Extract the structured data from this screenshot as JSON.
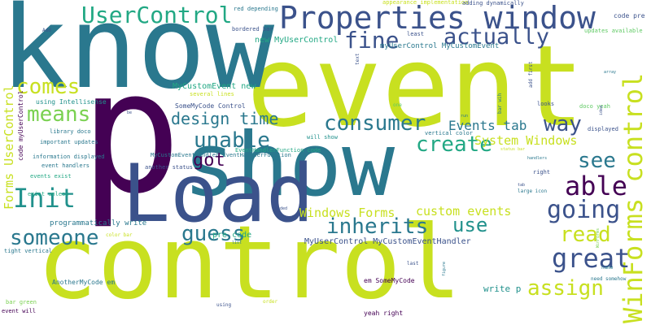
{
  "words": {
    "control": "control",
    "event": "event",
    "show": "show",
    "p": "p",
    "know": "know",
    "load": "Load",
    "properties_window": "Properties window",
    "winforms_control": "WinForms control",
    "usercontrol": "UserControl",
    "actually": "actually",
    "fine": "fine",
    "comes": "comes",
    "means": "means",
    "init": "Init",
    "someone": "someone",
    "guess": "guess",
    "design_time": "design time",
    "unable": "unable",
    "got": "got",
    "consumer": "consumer",
    "create": "create",
    "inherits": "inherits",
    "use": "use",
    "way": "way",
    "see": "see",
    "able": "able",
    "going": "going",
    "read": "read",
    "great": "great",
    "assign": "assign",
    "events_tab": "Events tab",
    "system_windows": "System Windows",
    "custom_events": "custom events",
    "windows_forms": "Windows Forms",
    "forms_usercontrol": "Forms UserControl",
    "mycustomevent_new": "MyCustomEvent new",
    "myusercontrol_mycustomeventhandler": "MyUserControl MyCustomEventHandler",
    "new_myusercontrol": "new MyUserControl",
    "myusercontrol_mycustomevent": "myUserControl MyCustomEvent",
    "pre_code": "pre code",
    "write_p": "write p",
    "programmatically_write": "programmatically write",
    "code_myusercontrol": "code myUserControl",
    "using_intellisense": "using Intellisense",
    "several_lines": "several lines",
    "somemycode_control": "SomeMyCode Control",
    "library_doco": "library doco",
    "information_displayed": "information displayed",
    "important_updates": "important updates",
    "event_handlers": "event handlers",
    "events_exist": "events exist",
    "exist_unless": "exist unless",
    "tight_vertical": "tight vertical",
    "color_bar": "color bar",
    "anothermycode_em": "AnotherMyCode em",
    "bar_green": "bar green",
    "event_will": "event will",
    "em_somemycode": "em SomeMyCode",
    "yeah_right": "yeah right",
    "eventhandlerfunction_code": "EventHandlerFunction code",
    "mycustomeventhandler_eventhandlerfunction": "MyCustomEventHandler EventHandlerFunction",
    "another_status": "another status",
    "will_show": "will show",
    "vertical_color": "vertical color",
    "red_depending": "red depending",
    "bordered_bar": "bordered bar",
    "appearance_implementation": "appearance implementation",
    "adding_dynamically": "adding dynamically",
    "code_pre": "code pre",
    "updates_available": "updates available",
    "least": "least",
    "add": "Add",
    "displayed": "displayed",
    "looks": "looks",
    "right": "right",
    "large_icon": "large icon",
    "doco_yeah": "doco yeah",
    "handlers": "handlers",
    "bar_wih": "bar wih",
    "last": "last",
    "name": "name",
    "need_somehow": "need somehow",
    "using": "using",
    "order": "order",
    "loaded": "loaded",
    "one": "one",
    "text": "text",
    "add_first": "add first",
    "figure": "figure",
    "run": "run",
    "list": "list",
    "be": "be",
    "array": "array",
    "idea": "idea",
    "winforms": "WinForms",
    "tab": "tab",
    "status_bar": "status bar"
  },
  "colors": {
    "purple": "#440154",
    "indigo": "#3b528b",
    "teal": "#2a788e",
    "cyan": "#21918c",
    "green": "#22a884",
    "lightgreen": "#5ec962",
    "lime": "#7ad151",
    "yellow": "#c8e020"
  }
}
